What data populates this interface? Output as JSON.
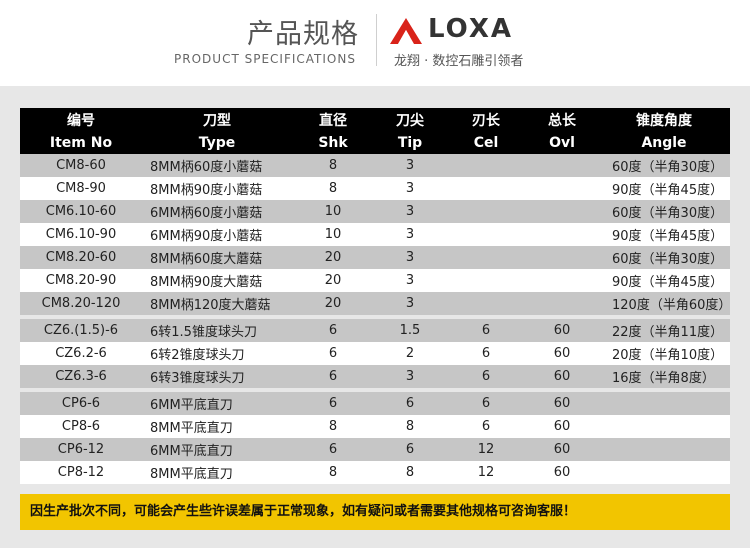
{
  "header": {
    "title_cn": "产品规格",
    "title_en": "PRODUCT SPECIFICATIONS",
    "brand": "LOXA",
    "tagline": "龙翔 · 数控石雕引领者",
    "logo_icon": "loxa-logo-icon",
    "logo_color": "#d9231a"
  },
  "table": {
    "header_cn": [
      "编号",
      "刀型",
      "直径",
      "刀尖",
      "刃长",
      "总长",
      "锥度角度"
    ],
    "header_en": [
      "Item No",
      "Type",
      "Shk",
      "Tip",
      "Cel",
      "Ovl",
      "Angle"
    ],
    "groups": [
      [
        [
          "CM8-60",
          "8MM柄60度小蘑菇",
          "8",
          "3",
          "",
          "",
          "60度（半角30度）"
        ],
        [
          "CM8-90",
          "8MM柄90度小蘑菇",
          "8",
          "3",
          "",
          "",
          "90度（半角45度）"
        ],
        [
          "CM6.10-60",
          "6MM柄60度小蘑菇",
          "10",
          "3",
          "",
          "",
          "60度（半角30度）"
        ],
        [
          "CM6.10-90",
          "6MM柄90度小蘑菇",
          "10",
          "3",
          "",
          "",
          "90度（半角45度）"
        ],
        [
          "CM8.20-60",
          "8MM柄60度大蘑菇",
          "20",
          "3",
          "",
          "",
          "60度（半角30度）"
        ],
        [
          "CM8.20-90",
          "8MM柄90度大蘑菇",
          "20",
          "3",
          "",
          "",
          "90度（半角45度）"
        ],
        [
          "CM8.20-120",
          "8MM柄120度大蘑菇",
          "20",
          "3",
          "",
          "",
          "120度（半角60度）"
        ]
      ],
      [
        [
          "CZ6.(1.5)-6",
          "6转1.5锥度球头刀",
          "6",
          "1.5",
          "6",
          "60",
          "22度（半角11度）"
        ],
        [
          "CZ6.2-6",
          "6转2锥度球头刀",
          "6",
          "2",
          "6",
          "60",
          "20度（半角10度）"
        ],
        [
          "CZ6.3-6",
          "6转3锥度球头刀",
          "6",
          "3",
          "6",
          "60",
          "16度（半角8度）"
        ]
      ],
      [
        [
          "CP6-6",
          "6MM平底直刀",
          "6",
          "6",
          "6",
          "60",
          ""
        ],
        [
          "CP8-6",
          "8MM平底直刀",
          "8",
          "8",
          "6",
          "60",
          ""
        ],
        [
          "CP6-12",
          "6MM平底直刀",
          "6",
          "6",
          "12",
          "60",
          ""
        ],
        [
          "CP8-12",
          "8MM平底直刀",
          "8",
          "8",
          "12",
          "60",
          ""
        ]
      ]
    ]
  },
  "notice": "因生产批次不同，可能会产生些许误差属于正常现象，如有疑问或者需要其他规格可咨询客服！",
  "colors": {
    "header_bg": "#000000",
    "row_gray": "#c6c6c6",
    "row_white": "#ffffff",
    "notice_bg": "#f2c500"
  }
}
